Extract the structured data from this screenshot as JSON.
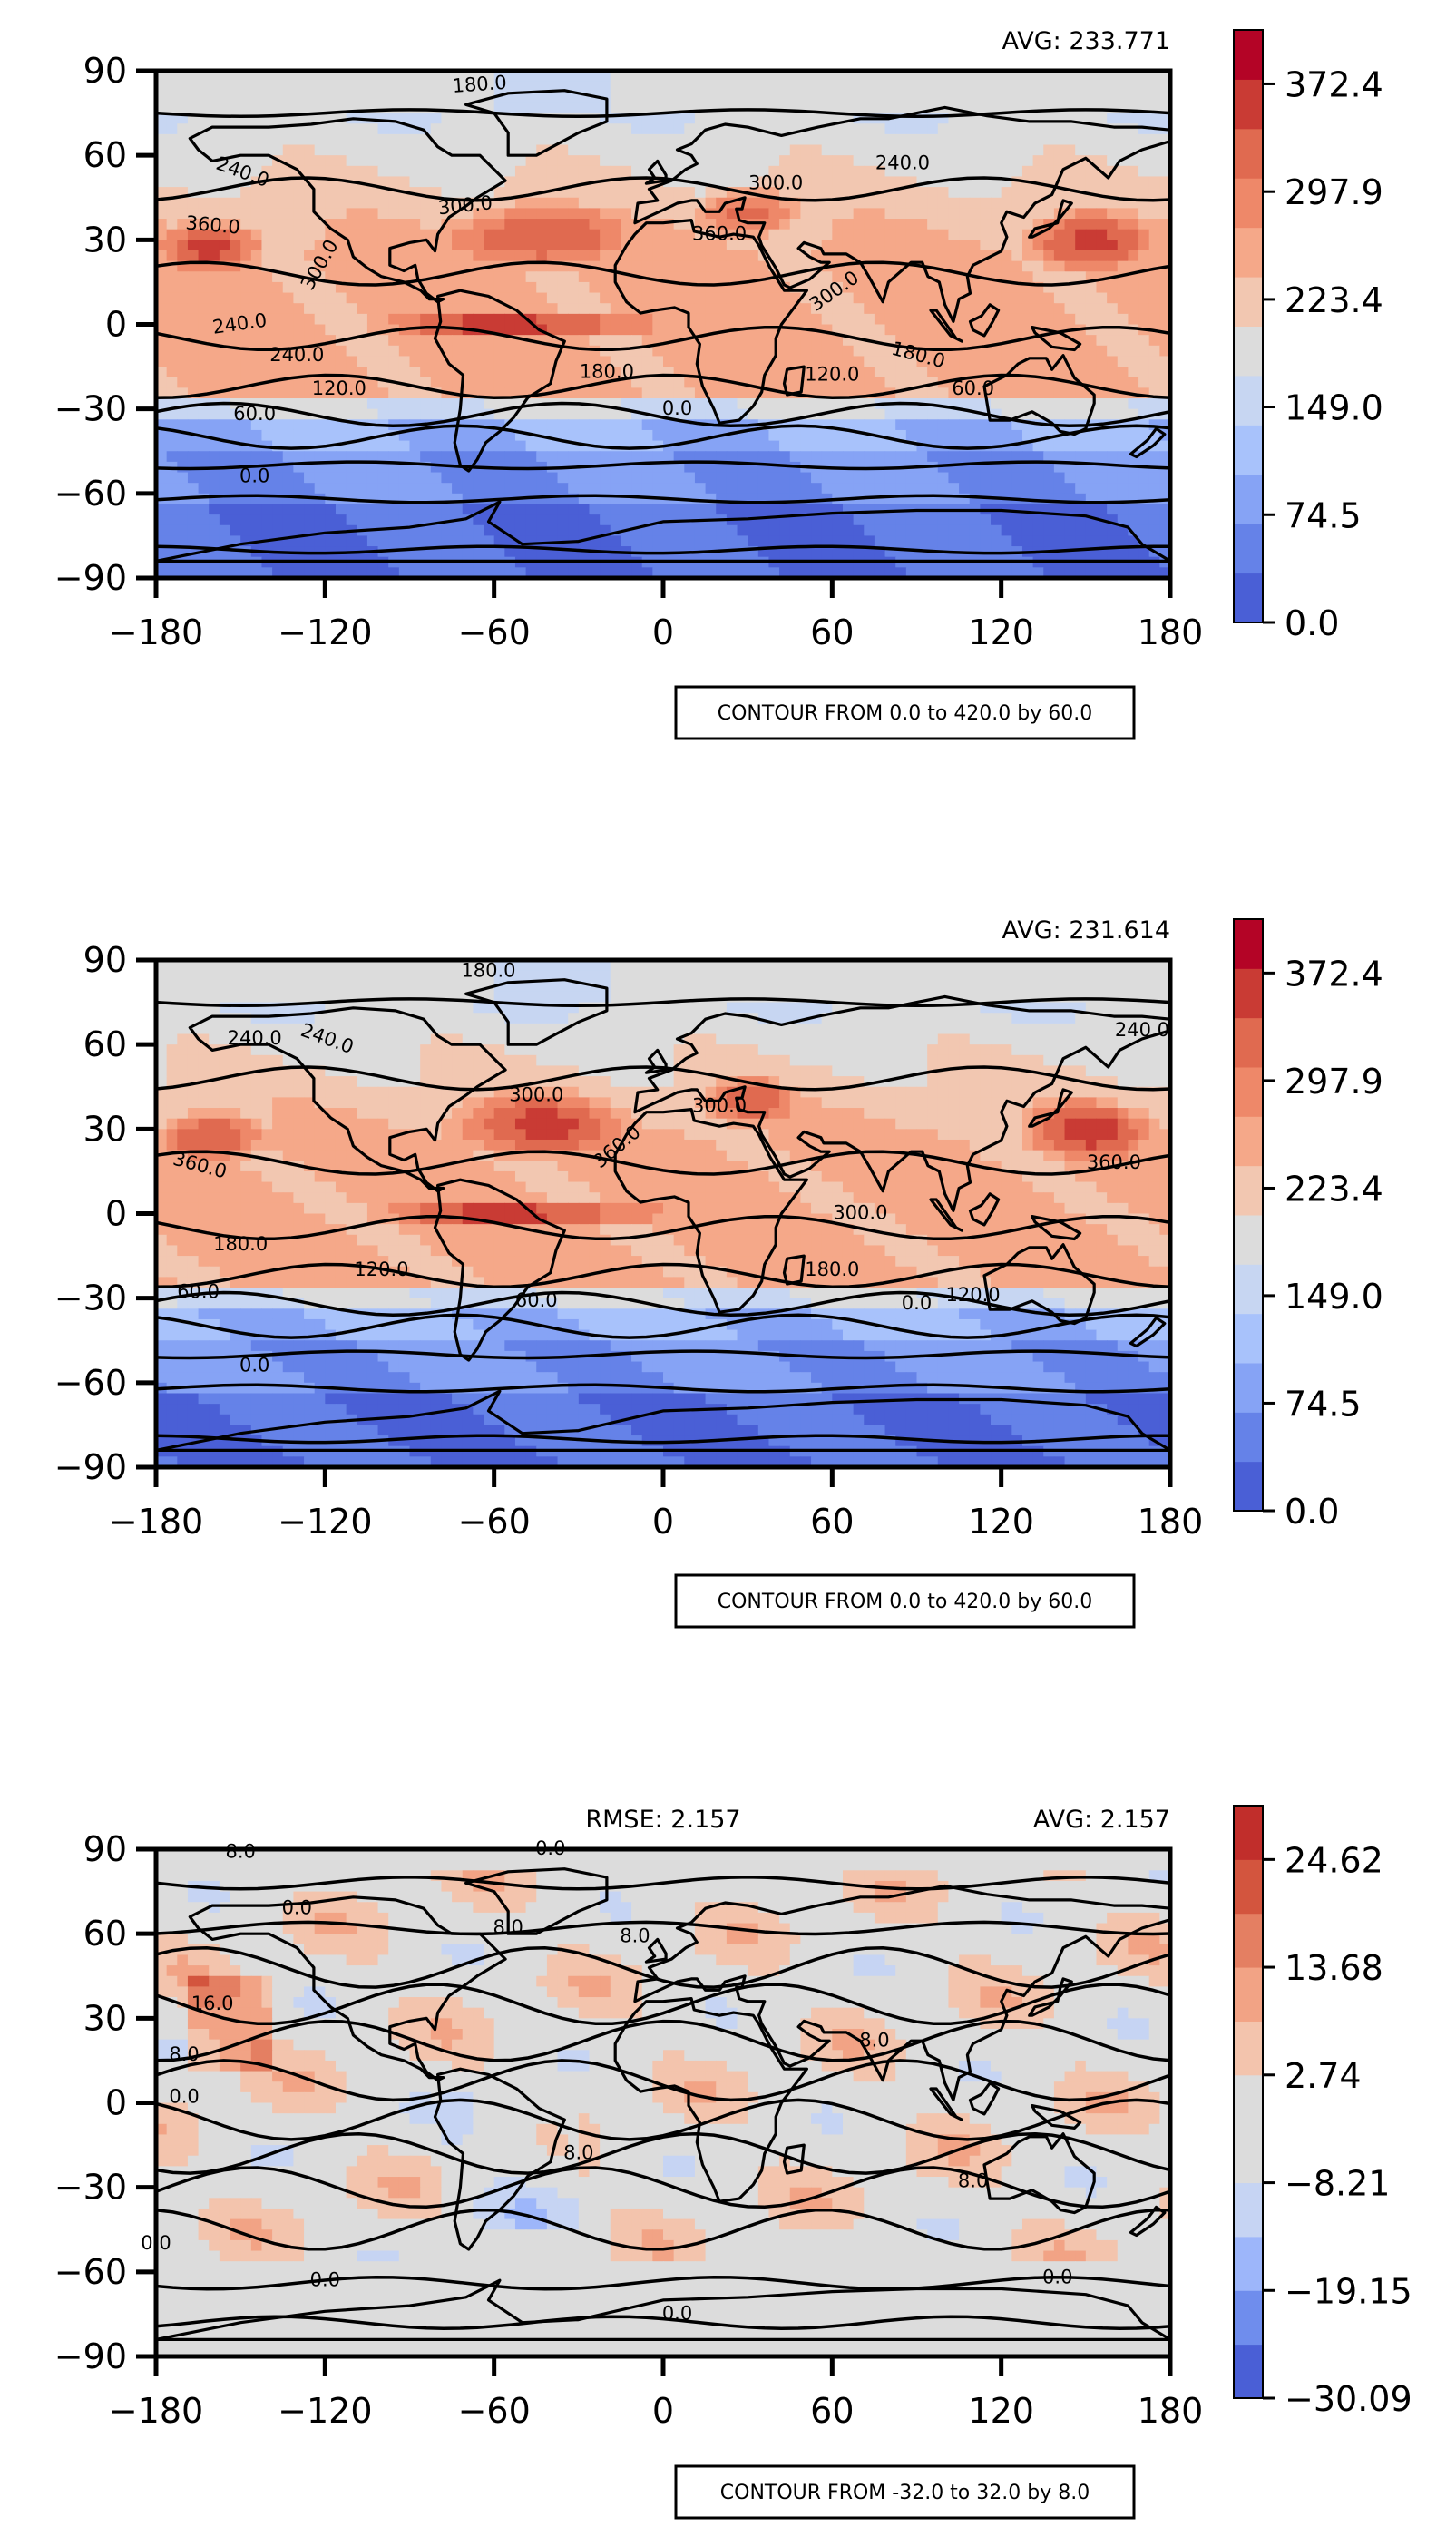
{
  "chart_data": [
    {
      "type": "heatmap",
      "subtype": "filled-contour map with world coastlines",
      "colormap": "coolwarm",
      "x_ticks": [
        "−180",
        "−120",
        "−60",
        "0",
        "60",
        "120",
        "180"
      ],
      "y_ticks": [
        "90",
        "60",
        "30",
        "0",
        "−30",
        "−60",
        "−90"
      ],
      "xlim": [
        -180,
        180
      ],
      "ylim": [
        -90,
        90
      ],
      "top_right_text": "AVG: 233.771",
      "colorbar": {
        "range": [
          0.0,
          409.7
        ],
        "levels": 12,
        "tick_labels": [
          "372.4",
          "297.9",
          "223.4",
          "149.0",
          "74.5",
          "0.0"
        ],
        "tick_values": [
          372.4,
          297.9,
          223.4,
          149.0,
          74.5,
          0.0
        ]
      },
      "contour_note": "CONTOUR FROM 0.0 to 420.0 by 60.0",
      "contour_labels": [
        "180.0",
        "240.0",
        "240.0",
        "360.0",
        "300.0",
        "300.0",
        "300.0",
        "360.0",
        "300.0",
        "240.0",
        "240.0",
        "180.0",
        "180.0",
        "120.0",
        "120.0",
        "60.0",
        "60.0",
        "0.0",
        "0.0"
      ],
      "grid": false,
      "legend": "colorbar-right"
    },
    {
      "type": "heatmap",
      "subtype": "filled-contour map with world coastlines",
      "colormap": "coolwarm",
      "x_ticks": [
        "−180",
        "−120",
        "−60",
        "0",
        "60",
        "120",
        "180"
      ],
      "y_ticks": [
        "90",
        "60",
        "30",
        "0",
        "−30",
        "−60",
        "−90"
      ],
      "xlim": [
        -180,
        180
      ],
      "ylim": [
        -90,
        90
      ],
      "top_right_text": "AVG: 231.614",
      "colorbar": {
        "range": [
          0.0,
          409.7
        ],
        "levels": 12,
        "tick_labels": [
          "372.4",
          "297.9",
          "223.4",
          "149.0",
          "74.5",
          "0.0"
        ],
        "tick_values": [
          372.4,
          297.9,
          223.4,
          149.0,
          74.5,
          0.0
        ]
      },
      "contour_note": "CONTOUR FROM 0.0 to 420.0 by 60.0",
      "contour_labels": [
        "180.0",
        "240.0",
        "300.0",
        "360.0",
        "360.0",
        "300.0",
        "360.0",
        "240.0",
        "240.0",
        "300.0",
        "180.0",
        "180.0",
        "120.0",
        "120.0",
        "60.0",
        "60.0",
        "0.0",
        "0.0"
      ],
      "grid": false,
      "legend": "colorbar-right"
    },
    {
      "type": "heatmap",
      "subtype": "filled-contour difference map with world coastlines",
      "colormap": "coolwarm",
      "x_ticks": [
        "−180",
        "−120",
        "−60",
        "0",
        "60",
        "120",
        "180"
      ],
      "y_ticks": [
        "90",
        "60",
        "30",
        "0",
        "−30",
        "−60",
        "−90"
      ],
      "xlim": [
        -180,
        180
      ],
      "ylim": [
        -90,
        90
      ],
      "top_center_text": "RMSE: 2.157",
      "top_right_text": "AVG: 2.157",
      "colorbar": {
        "range": [
          -30.09,
          30.09
        ],
        "levels": 11,
        "tick_labels": [
          "24.62",
          "13.68",
          "2.74",
          "−8.21",
          "−19.15",
          "−30.09"
        ],
        "tick_values": [
          24.62,
          13.68,
          2.74,
          -8.21,
          -19.15,
          -30.09
        ]
      },
      "contour_note": "CONTOUR FROM -32.0 to 32.0 by 8.0",
      "contour_labels": [
        "8.0",
        "0.0",
        "0.0",
        "8.0",
        "16.0",
        "8.0",
        "0.0",
        "8.0",
        "8.0",
        "8.0",
        "8.0",
        "0.0",
        "0.0",
        "0.0",
        "0.0"
      ],
      "grid": false,
      "legend": "colorbar-right"
    }
  ],
  "colors": {
    "abs_scale": [
      "#4a5fd6",
      "#6582e8",
      "#86a3f5",
      "#a8c2fb",
      "#c7d6f2",
      "#dcdcdc",
      "#f2c7b1",
      "#f5a889",
      "#ee8869",
      "#e06a50",
      "#c93b34",
      "#b40426"
    ],
    "diff_scale": [
      "#4a5fd6",
      "#6f8ded",
      "#9db6fa",
      "#c6d4f3",
      "#dcdcdc",
      "#dcdcdc",
      "#f3c4ad",
      "#f2a385",
      "#e47f62",
      "#d3553e",
      "#c12e2b"
    ]
  }
}
